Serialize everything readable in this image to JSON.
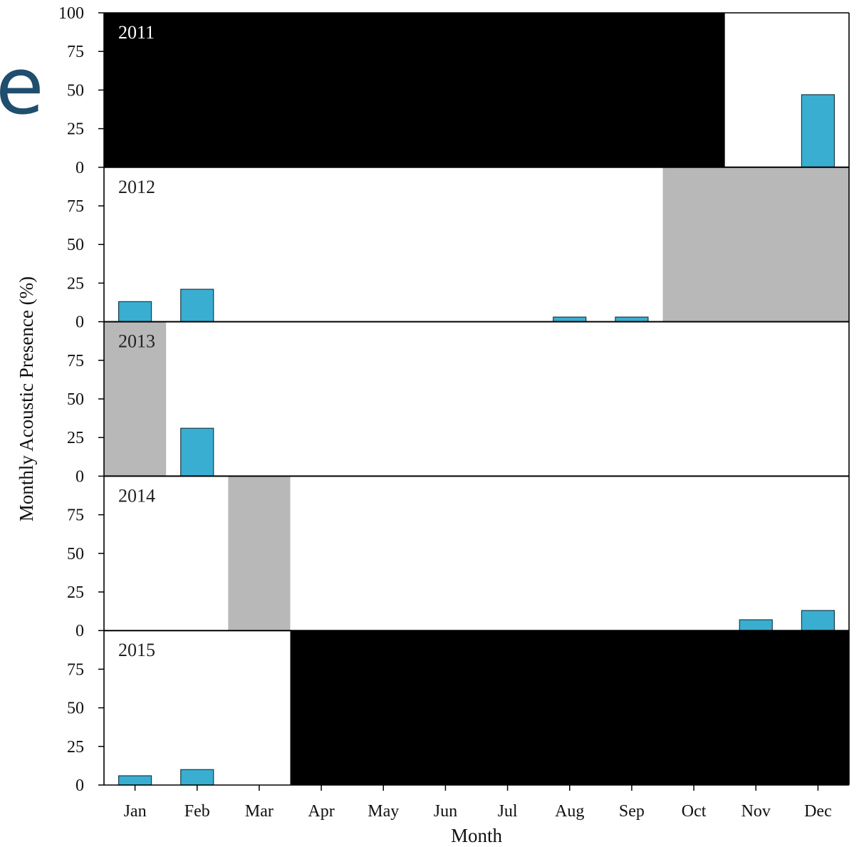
{
  "corner_mark": "e",
  "chart_data": {
    "type": "bar",
    "xlabel": "Month",
    "ylabel": "Monthly Acoustic Presence (%)",
    "ylim": [
      0,
      100
    ],
    "top_ticks": [
      "100",
      "75",
      "50",
      "25",
      "0"
    ],
    "panel_ticks": [
      "75",
      "50",
      "25",
      "0"
    ],
    "categories": [
      "Jan",
      "Feb",
      "Mar",
      "Apr",
      "May",
      "Jun",
      "Jul",
      "Aug",
      "Sep",
      "Oct",
      "Nov",
      "Dec"
    ],
    "colors": {
      "bar": "#3aaed0",
      "bar_edge": "#1a3a48",
      "no_data": "#000000",
      "partial": "#b8b8b8",
      "axis": "#000000"
    },
    "panels": [
      {
        "year": "2011",
        "values": [
          0,
          0,
          0,
          0,
          0,
          0,
          0,
          0,
          0,
          0,
          0,
          47
        ],
        "shaded": [
          {
            "kind": "no_data",
            "months": [
              1,
              10
            ]
          }
        ]
      },
      {
        "year": "2012",
        "values": [
          13,
          21,
          0,
          0,
          0,
          0,
          0,
          3,
          3,
          0,
          0,
          0
        ],
        "shaded": [
          {
            "kind": "partial",
            "months": [
              10,
              12
            ]
          }
        ]
      },
      {
        "year": "2013",
        "values": [
          0,
          31,
          0,
          0,
          0,
          0,
          0,
          0,
          0,
          0,
          0,
          0
        ],
        "shaded": [
          {
            "kind": "partial",
            "months": [
              1,
              1
            ]
          }
        ]
      },
      {
        "year": "2014",
        "values": [
          0,
          0,
          0,
          0,
          0,
          0,
          0,
          0,
          0,
          0,
          7,
          13
        ],
        "shaded": [
          {
            "kind": "partial",
            "months": [
              3,
              3
            ]
          }
        ]
      },
      {
        "year": "2015",
        "values": [
          6,
          10,
          0,
          0,
          0,
          0,
          0,
          0,
          0,
          0,
          0,
          0
        ],
        "shaded": [
          {
            "kind": "no_data",
            "months": [
              4,
              12
            ]
          }
        ]
      }
    ]
  }
}
